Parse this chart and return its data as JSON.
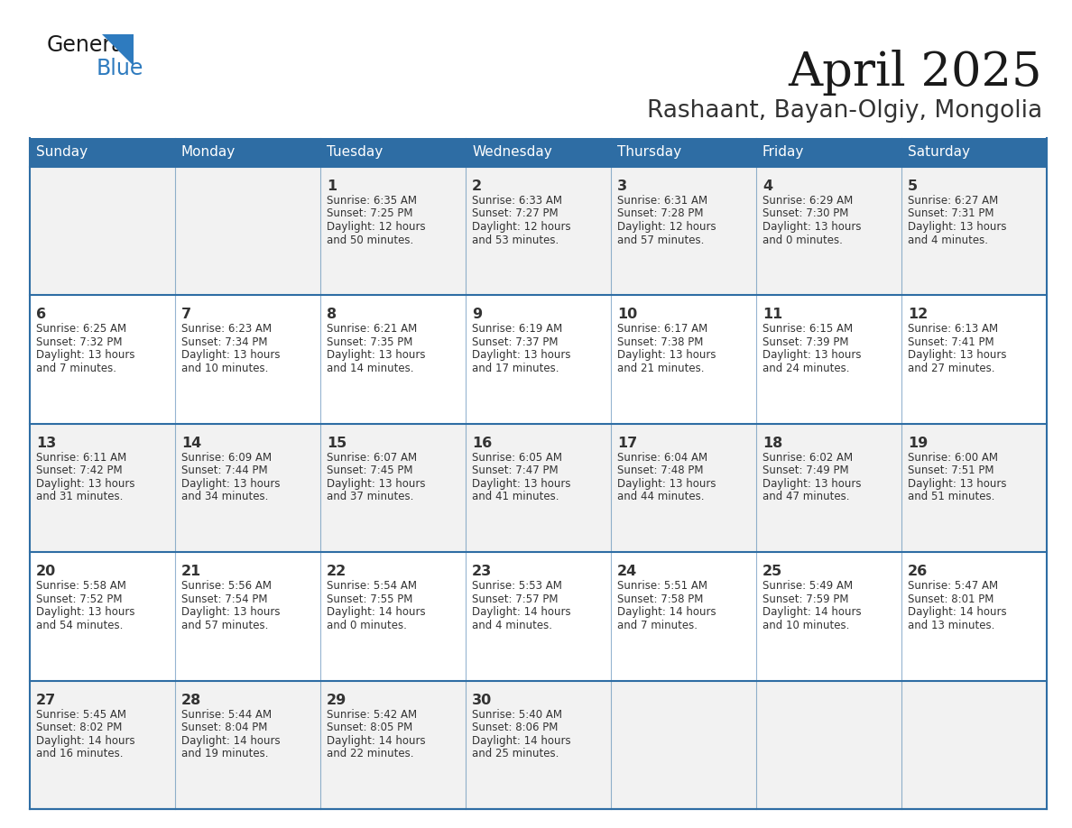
{
  "title": "April 2025",
  "subtitle": "Rashaant, Bayan-Olgiy, Mongolia",
  "header_bg_color": "#2E6DA4",
  "header_text_color": "#FFFFFF",
  "row_bg_colors": [
    "#F2F2F2",
    "#FFFFFF"
  ],
  "border_color": "#2E6DA4",
  "text_color": "#333333",
  "logo_text_color": "#222222",
  "logo_blue_color": "#2E7BBF",
  "days_of_week": [
    "Sunday",
    "Monday",
    "Tuesday",
    "Wednesday",
    "Thursday",
    "Friday",
    "Saturday"
  ],
  "calendar_data": [
    [
      {
        "day": "",
        "sunrise": "",
        "sunset": "",
        "daylight_h": "",
        "daylight_m": ""
      },
      {
        "day": "",
        "sunrise": "",
        "sunset": "",
        "daylight_h": "",
        "daylight_m": ""
      },
      {
        "day": "1",
        "sunrise": "6:35 AM",
        "sunset": "7:25 PM",
        "daylight_h": "12",
        "daylight_m": "50"
      },
      {
        "day": "2",
        "sunrise": "6:33 AM",
        "sunset": "7:27 PM",
        "daylight_h": "12",
        "daylight_m": "53"
      },
      {
        "day": "3",
        "sunrise": "6:31 AM",
        "sunset": "7:28 PM",
        "daylight_h": "12",
        "daylight_m": "57"
      },
      {
        "day": "4",
        "sunrise": "6:29 AM",
        "sunset": "7:30 PM",
        "daylight_h": "13",
        "daylight_m": "0"
      },
      {
        "day": "5",
        "sunrise": "6:27 AM",
        "sunset": "7:31 PM",
        "daylight_h": "13",
        "daylight_m": "4"
      }
    ],
    [
      {
        "day": "6",
        "sunrise": "6:25 AM",
        "sunset": "7:32 PM",
        "daylight_h": "13",
        "daylight_m": "7"
      },
      {
        "day": "7",
        "sunrise": "6:23 AM",
        "sunset": "7:34 PM",
        "daylight_h": "13",
        "daylight_m": "10"
      },
      {
        "day": "8",
        "sunrise": "6:21 AM",
        "sunset": "7:35 PM",
        "daylight_h": "13",
        "daylight_m": "14"
      },
      {
        "day": "9",
        "sunrise": "6:19 AM",
        "sunset": "7:37 PM",
        "daylight_h": "13",
        "daylight_m": "17"
      },
      {
        "day": "10",
        "sunrise": "6:17 AM",
        "sunset": "7:38 PM",
        "daylight_h": "13",
        "daylight_m": "21"
      },
      {
        "day": "11",
        "sunrise": "6:15 AM",
        "sunset": "7:39 PM",
        "daylight_h": "13",
        "daylight_m": "24"
      },
      {
        "day": "12",
        "sunrise": "6:13 AM",
        "sunset": "7:41 PM",
        "daylight_h": "13",
        "daylight_m": "27"
      }
    ],
    [
      {
        "day": "13",
        "sunrise": "6:11 AM",
        "sunset": "7:42 PM",
        "daylight_h": "13",
        "daylight_m": "31"
      },
      {
        "day": "14",
        "sunrise": "6:09 AM",
        "sunset": "7:44 PM",
        "daylight_h": "13",
        "daylight_m": "34"
      },
      {
        "day": "15",
        "sunrise": "6:07 AM",
        "sunset": "7:45 PM",
        "daylight_h": "13",
        "daylight_m": "37"
      },
      {
        "day": "16",
        "sunrise": "6:05 AM",
        "sunset": "7:47 PM",
        "daylight_h": "13",
        "daylight_m": "41"
      },
      {
        "day": "17",
        "sunrise": "6:04 AM",
        "sunset": "7:48 PM",
        "daylight_h": "13",
        "daylight_m": "44"
      },
      {
        "day": "18",
        "sunrise": "6:02 AM",
        "sunset": "7:49 PM",
        "daylight_h": "13",
        "daylight_m": "47"
      },
      {
        "day": "19",
        "sunrise": "6:00 AM",
        "sunset": "7:51 PM",
        "daylight_h": "13",
        "daylight_m": "51"
      }
    ],
    [
      {
        "day": "20",
        "sunrise": "5:58 AM",
        "sunset": "7:52 PM",
        "daylight_h": "13",
        "daylight_m": "54"
      },
      {
        "day": "21",
        "sunrise": "5:56 AM",
        "sunset": "7:54 PM",
        "daylight_h": "13",
        "daylight_m": "57"
      },
      {
        "day": "22",
        "sunrise": "5:54 AM",
        "sunset": "7:55 PM",
        "daylight_h": "14",
        "daylight_m": "0"
      },
      {
        "day": "23",
        "sunrise": "5:53 AM",
        "sunset": "7:57 PM",
        "daylight_h": "14",
        "daylight_m": "4"
      },
      {
        "day": "24",
        "sunrise": "5:51 AM",
        "sunset": "7:58 PM",
        "daylight_h": "14",
        "daylight_m": "7"
      },
      {
        "day": "25",
        "sunrise": "5:49 AM",
        "sunset": "7:59 PM",
        "daylight_h": "14",
        "daylight_m": "10"
      },
      {
        "day": "26",
        "sunrise": "5:47 AM",
        "sunset": "8:01 PM",
        "daylight_h": "14",
        "daylight_m": "13"
      }
    ],
    [
      {
        "day": "27",
        "sunrise": "5:45 AM",
        "sunset": "8:02 PM",
        "daylight_h": "14",
        "daylight_m": "16"
      },
      {
        "day": "28",
        "sunrise": "5:44 AM",
        "sunset": "8:04 PM",
        "daylight_h": "14",
        "daylight_m": "19"
      },
      {
        "day": "29",
        "sunrise": "5:42 AM",
        "sunset": "8:05 PM",
        "daylight_h": "14",
        "daylight_m": "22"
      },
      {
        "day": "30",
        "sunrise": "5:40 AM",
        "sunset": "8:06 PM",
        "daylight_h": "14",
        "daylight_m": "25"
      },
      {
        "day": "",
        "sunrise": "",
        "sunset": "",
        "daylight_h": "",
        "daylight_m": ""
      },
      {
        "day": "",
        "sunrise": "",
        "sunset": "",
        "daylight_h": "",
        "daylight_m": ""
      },
      {
        "day": "",
        "sunrise": "",
        "sunset": "",
        "daylight_h": "",
        "daylight_m": ""
      }
    ]
  ]
}
